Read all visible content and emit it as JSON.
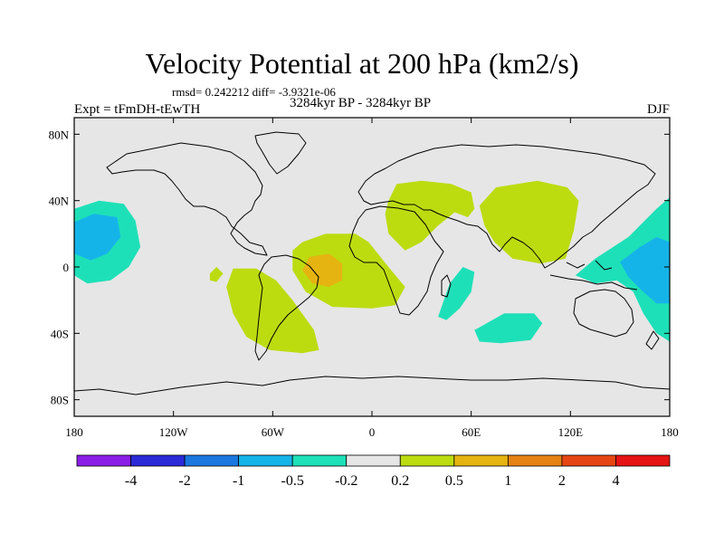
{
  "chart_data": {
    "type": "heatmap",
    "title": "Velocity Potential at 200 hPa (km2/s)",
    "stats_line": "rmsd= 0.242212 diff= -3.9321e-06",
    "left_label": "Expt = tFmDH-tEwTH",
    "center_label": "3284kyr BP - 3284kyr BP",
    "right_label": "DJF",
    "x_axis": {
      "ticks": [
        -180,
        -120,
        -60,
        0,
        60,
        120,
        180
      ],
      "tick_labels": [
        "180",
        "120W",
        "60W",
        "0",
        "60E",
        "120E",
        "180"
      ],
      "range": [
        -180,
        180
      ]
    },
    "y_axis": {
      "ticks": [
        80,
        40,
        0,
        -40,
        -80
      ],
      "tick_labels": [
        "80N",
        "40N",
        "0",
        "40S",
        "80S"
      ],
      "range": [
        -90,
        90
      ]
    },
    "colorbar": {
      "colors": [
        "#8a1ee6",
        "#2b2bd8",
        "#1a78e0",
        "#15b4e8",
        "#1ee0b8",
        "#e6e6e6",
        "#bcdc10",
        "#e6b410",
        "#e68214",
        "#e64614",
        "#e61414"
      ],
      "levels": [
        "-4",
        "-2",
        "-1",
        "-0.5",
        "-0.2",
        "0.2",
        "0.5",
        "1",
        "2",
        "4"
      ]
    },
    "regions": [
      {
        "name": "north-pacific-negative",
        "level": "-0.2 to -0.5",
        "category": "negative",
        "outline": [
          [
            -180,
            35
          ],
          [
            -165,
            40
          ],
          [
            -150,
            38
          ],
          [
            -143,
            28
          ],
          [
            -140,
            12
          ],
          [
            -147,
            0
          ],
          [
            -158,
            -8
          ],
          [
            -172,
            -10
          ],
          [
            -180,
            -5
          ]
        ]
      },
      {
        "name": "north-pacific-core",
        "level": "-0.5 to -1",
        "category": "strong-negative",
        "outline": [
          [
            -180,
            27
          ],
          [
            -168,
            32
          ],
          [
            -154,
            30
          ],
          [
            -152,
            18
          ],
          [
            -160,
            8
          ],
          [
            -170,
            4
          ],
          [
            -180,
            8
          ]
        ]
      },
      {
        "name": "small-pacific-island-positive",
        "level": "0.2 to 0.5",
        "category": "positive",
        "outline": [
          [
            -98,
            -4
          ],
          [
            -94,
            0
          ],
          [
            -90,
            -4
          ],
          [
            -94,
            -9
          ],
          [
            -98,
            -8
          ]
        ]
      },
      {
        "name": "south-america-positive",
        "level": "0.2 to 0.5",
        "category": "positive",
        "outline": [
          [
            -84,
            -1
          ],
          [
            -70,
            -1
          ],
          [
            -58,
            -8
          ],
          [
            -48,
            -20
          ],
          [
            -35,
            -38
          ],
          [
            -32,
            -50
          ],
          [
            -42,
            -52
          ],
          [
            -62,
            -50
          ],
          [
            -76,
            -42
          ],
          [
            -84,
            -28
          ],
          [
            -88,
            -12
          ]
        ]
      },
      {
        "name": "tropical-atlantic-positive",
        "level": "0.2 to 0.5",
        "category": "positive",
        "outline": [
          [
            -42,
            15
          ],
          [
            -28,
            20
          ],
          [
            -10,
            20
          ],
          [
            -2,
            15
          ],
          [
            10,
            0
          ],
          [
            20,
            -12
          ],
          [
            14,
            -23
          ],
          [
            0,
            -25
          ],
          [
            -24,
            -24
          ],
          [
            -40,
            -15
          ],
          [
            -48,
            -2
          ],
          [
            -48,
            10
          ]
        ]
      },
      {
        "name": "tropical-atlantic-core",
        "level": "0.5 to 1",
        "category": "strong-positive",
        "outline": [
          [
            -38,
            6
          ],
          [
            -26,
            8
          ],
          [
            -18,
            2
          ],
          [
            -18,
            -8
          ],
          [
            -26,
            -12
          ],
          [
            -36,
            -10
          ],
          [
            -42,
            -2
          ]
        ]
      },
      {
        "name": "eurasia-africa-positive",
        "level": "0.2 to 0.5",
        "category": "positive",
        "outline": [
          [
            10,
            40
          ],
          [
            15,
            50
          ],
          [
            30,
            52
          ],
          [
            48,
            50
          ],
          [
            60,
            45
          ],
          [
            62,
            35
          ],
          [
            58,
            30
          ],
          [
            50,
            33
          ],
          [
            40,
            25
          ],
          [
            30,
            15
          ],
          [
            20,
            10
          ],
          [
            10,
            20
          ],
          [
            8,
            32
          ]
        ]
      },
      {
        "name": "east-asia-positive",
        "level": "0.2 to 0.5",
        "category": "positive",
        "outline": [
          [
            65,
            37
          ],
          [
            75,
            48
          ],
          [
            100,
            52
          ],
          [
            118,
            48
          ],
          [
            125,
            40
          ],
          [
            122,
            22
          ],
          [
            117,
            5
          ],
          [
            102,
            2
          ],
          [
            85,
            5
          ],
          [
            74,
            15
          ],
          [
            68,
            25
          ]
        ]
      },
      {
        "name": "southwest-indian-negative",
        "level": "-0.2 to -0.5",
        "category": "negative",
        "outline": [
          [
            40,
            -30
          ],
          [
            47,
            -10
          ],
          [
            55,
            0
          ],
          [
            62,
            -3
          ],
          [
            60,
            -15
          ],
          [
            53,
            -25
          ],
          [
            45,
            -32
          ]
        ]
      },
      {
        "name": "south-indian-negative",
        "level": "-0.2 to -0.5",
        "category": "negative",
        "outline": [
          [
            62,
            -38
          ],
          [
            80,
            -28
          ],
          [
            98,
            -28
          ],
          [
            103,
            -34
          ],
          [
            96,
            -44
          ],
          [
            78,
            -46
          ],
          [
            65,
            -45
          ]
        ]
      },
      {
        "name": "west-pacific-negative",
        "level": "-0.2 to -0.5",
        "category": "negative",
        "outline": [
          [
            123,
            -5
          ],
          [
            135,
            5
          ],
          [
            155,
            18
          ],
          [
            172,
            35
          ],
          [
            180,
            42
          ],
          [
            180,
            -45
          ],
          [
            172,
            -40
          ],
          [
            164,
            -28
          ],
          [
            158,
            -15
          ],
          [
            148,
            -8
          ],
          [
            135,
            -10
          ]
        ]
      },
      {
        "name": "west-pacific-core",
        "level": "-0.5 to -1",
        "category": "strong-negative",
        "outline": [
          [
            150,
            3
          ],
          [
            162,
            12
          ],
          [
            172,
            18
          ],
          [
            180,
            15
          ],
          [
            180,
            -22
          ],
          [
            172,
            -22
          ],
          [
            163,
            -14
          ],
          [
            155,
            -6
          ]
        ]
      }
    ]
  }
}
